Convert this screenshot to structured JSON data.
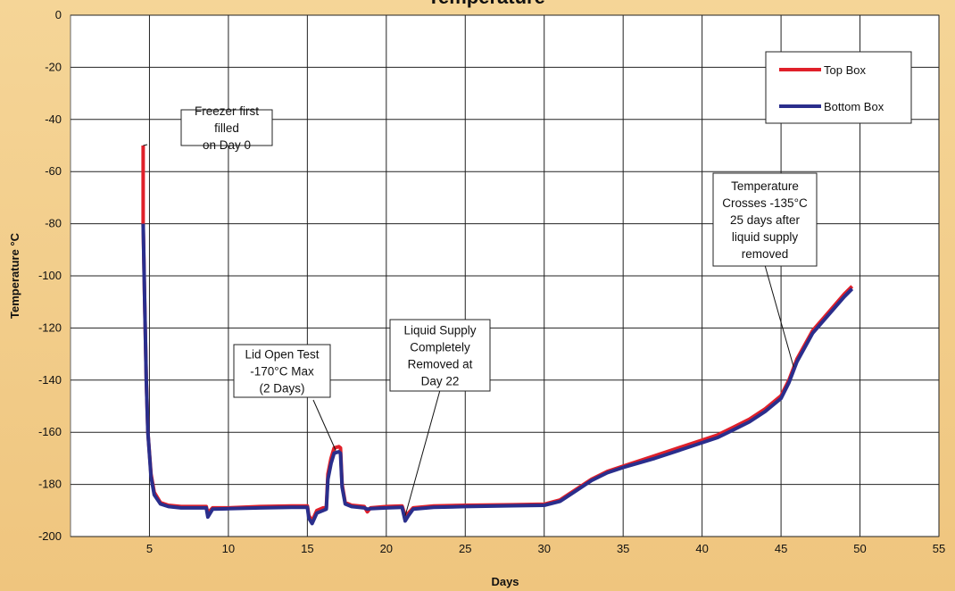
{
  "chart_data": {
    "type": "line",
    "title": "Temperature",
    "xlabel": "Days",
    "ylabel": "Temperature °C",
    "xlim": [
      0,
      55
    ],
    "ylim": [
      -200,
      0
    ],
    "x_ticks": [
      5,
      10,
      15,
      20,
      25,
      30,
      35,
      40,
      45,
      50,
      55
    ],
    "y_ticks": [
      0,
      -20,
      -40,
      -60,
      -80,
      -100,
      -120,
      -140,
      -160,
      -180,
      -200
    ],
    "grid": true,
    "legend_position": "top-right",
    "series": [
      {
        "name": "Top Box",
        "color": "#e0202a",
        "points": [
          [
            4.6,
            -50
          ],
          [
            4.6,
            -80
          ],
          [
            4.7,
            -110
          ],
          [
            4.8,
            -140
          ],
          [
            4.9,
            -160
          ],
          [
            5.1,
            -176
          ],
          [
            5.3,
            -183
          ],
          [
            5.7,
            -187
          ],
          [
            6.2,
            -188
          ],
          [
            7,
            -188.5
          ],
          [
            8.6,
            -188.5
          ],
          [
            8.7,
            -191
          ],
          [
            9,
            -189
          ],
          [
            10,
            -189
          ],
          [
            12,
            -188.5
          ],
          [
            14,
            -188.3
          ],
          [
            15,
            -188.3
          ],
          [
            15.1,
            -192
          ],
          [
            15.3,
            -194
          ],
          [
            15.6,
            -190
          ],
          [
            16,
            -189
          ],
          [
            16.2,
            -189
          ],
          [
            16.3,
            -176
          ],
          [
            16.5,
            -170
          ],
          [
            16.7,
            -166
          ],
          [
            17,
            -165.5
          ],
          [
            17.1,
            -166
          ],
          [
            17.2,
            -180
          ],
          [
            17.4,
            -187
          ],
          [
            17.8,
            -188
          ],
          [
            18.6,
            -188.5
          ],
          [
            18.8,
            -190.5
          ],
          [
            19,
            -189
          ],
          [
            20,
            -188.5
          ],
          [
            21,
            -188.3
          ],
          [
            21.2,
            -192
          ],
          [
            21.4,
            -191
          ],
          [
            21.7,
            -189
          ],
          [
            23,
            -188.3
          ],
          [
            25,
            -188
          ],
          [
            28,
            -187.8
          ],
          [
            30,
            -187.6
          ],
          [
            31,
            -186
          ],
          [
            32,
            -182
          ],
          [
            33,
            -178
          ],
          [
            34,
            -175
          ],
          [
            35,
            -173
          ],
          [
            37,
            -169
          ],
          [
            38,
            -167
          ],
          [
            40,
            -163
          ],
          [
            41,
            -161
          ],
          [
            42,
            -158
          ],
          [
            43,
            -155
          ],
          [
            44,
            -151
          ],
          [
            45,
            -146
          ],
          [
            45.5,
            -140
          ],
          [
            46,
            -132
          ],
          [
            47,
            -121
          ],
          [
            48,
            -114
          ],
          [
            49,
            -107
          ],
          [
            49.5,
            -104
          ]
        ]
      },
      {
        "name": "Bottom Box",
        "color": "#2a2e8c",
        "points": [
          [
            4.6,
            -80
          ],
          [
            4.7,
            -110
          ],
          [
            4.8,
            -140
          ],
          [
            4.9,
            -160
          ],
          [
            5.1,
            -177
          ],
          [
            5.3,
            -184
          ],
          [
            5.7,
            -187.5
          ],
          [
            6.2,
            -188.5
          ],
          [
            7,
            -189
          ],
          [
            8.6,
            -189
          ],
          [
            8.7,
            -192.5
          ],
          [
            9,
            -189.5
          ],
          [
            10,
            -189.3
          ],
          [
            12,
            -189
          ],
          [
            14,
            -188.8
          ],
          [
            15,
            -188.8
          ],
          [
            15.1,
            -193
          ],
          [
            15.3,
            -195
          ],
          [
            15.6,
            -191
          ],
          [
            16,
            -190
          ],
          [
            16.2,
            -189.5
          ],
          [
            16.3,
            -178
          ],
          [
            16.5,
            -172
          ],
          [
            16.7,
            -168
          ],
          [
            17,
            -167.5
          ],
          [
            17.1,
            -168
          ],
          [
            17.2,
            -181
          ],
          [
            17.4,
            -187.5
          ],
          [
            17.8,
            -188.5
          ],
          [
            18.6,
            -189
          ],
          [
            18.8,
            -189.5
          ],
          [
            19,
            -189.3
          ],
          [
            20,
            -189
          ],
          [
            21,
            -188.8
          ],
          [
            21.2,
            -194
          ],
          [
            21.4,
            -192
          ],
          [
            21.7,
            -189.5
          ],
          [
            23,
            -188.8
          ],
          [
            25,
            -188.5
          ],
          [
            28,
            -188.2
          ],
          [
            30,
            -188
          ],
          [
            31,
            -186.5
          ],
          [
            32,
            -182.5
          ],
          [
            33,
            -178.5
          ],
          [
            34,
            -175.5
          ],
          [
            35,
            -173.5
          ],
          [
            37,
            -170
          ],
          [
            38,
            -168
          ],
          [
            40,
            -164
          ],
          [
            41,
            -162
          ],
          [
            42,
            -159
          ],
          [
            43,
            -156
          ],
          [
            44,
            -152
          ],
          [
            45,
            -147
          ],
          [
            45.5,
            -141
          ],
          [
            46,
            -133
          ],
          [
            47,
            -122
          ],
          [
            48,
            -115
          ],
          [
            49,
            -108
          ],
          [
            49.5,
            -105
          ]
        ]
      }
    ],
    "annotations": [
      {
        "lines": [
          "Freezer first",
          "filled",
          "on Day 0"
        ],
        "target": [
          4.6,
          -50
        ]
      },
      {
        "lines": [
          "Lid Open Test",
          "-170°C Max",
          "(2 Days)"
        ],
        "target": [
          16.8,
          -167
        ]
      },
      {
        "lines": [
          "Liquid Supply",
          "Completely",
          "Removed at",
          "Day 22"
        ],
        "target": [
          21.2,
          -192
        ]
      },
      {
        "lines": [
          "Temperature",
          "Crosses -135°C",
          "25 days after",
          "liquid supply",
          "removed"
        ],
        "target": [
          45.8,
          -135
        ]
      }
    ]
  }
}
